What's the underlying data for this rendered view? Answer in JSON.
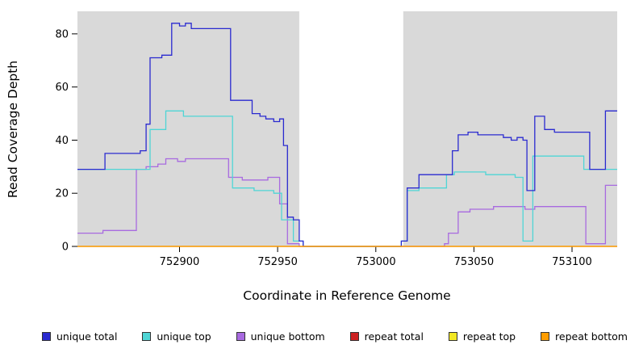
{
  "chart_data": {
    "type": "line",
    "style": "step",
    "title": "",
    "xlabel": "Coordinate in Reference Genome",
    "ylabel": "Read Coverage Depth",
    "xlim": [
      752848,
      753123
    ],
    "ylim": [
      0,
      88.5
    ],
    "x_ticks": [
      752900,
      752950,
      753000,
      753050,
      753100
    ],
    "y_ticks": [
      0,
      20,
      40,
      60,
      80
    ],
    "grid": false,
    "legend_position": "bottom",
    "plot_background": "#d9d9d9",
    "gap_region": {
      "x_start": 752961,
      "x_end": 753014,
      "color": "#ffffff"
    },
    "series": [
      {
        "name": "unique total",
        "color": "#2a2ad0",
        "points": [
          [
            752848,
            29
          ],
          [
            752862,
            35
          ],
          [
            752880,
            36
          ],
          [
            752883,
            46
          ],
          [
            752885,
            71
          ],
          [
            752891,
            72
          ],
          [
            752896,
            84
          ],
          [
            752900,
            83
          ],
          [
            752903,
            84
          ],
          [
            752906,
            82
          ],
          [
            752926,
            55
          ],
          [
            752937,
            50
          ],
          [
            752941,
            49
          ],
          [
            752944,
            48
          ],
          [
            752948,
            47
          ],
          [
            752951,
            48
          ],
          [
            752953,
            38
          ],
          [
            752955,
            11
          ],
          [
            752958,
            10
          ],
          [
            752961,
            2
          ],
          [
            752963,
            0
          ],
          [
            753013,
            2
          ],
          [
            753016,
            22
          ],
          [
            753022,
            27
          ],
          [
            753039,
            36
          ],
          [
            753042,
            42
          ],
          [
            753047,
            43
          ],
          [
            753052,
            42
          ],
          [
            753065,
            41
          ],
          [
            753069,
            40
          ],
          [
            753072,
            41
          ],
          [
            753075,
            40
          ],
          [
            753077,
            21
          ],
          [
            753081,
            49
          ],
          [
            753086,
            44
          ],
          [
            753091,
            43
          ],
          [
            753109,
            29
          ],
          [
            753117,
            51
          ]
        ]
      },
      {
        "name": "unique top",
        "color": "#4fd5d5",
        "points": [
          [
            752848,
            29
          ],
          [
            752885,
            44
          ],
          [
            752893,
            51
          ],
          [
            752902,
            49
          ],
          [
            752927,
            22
          ],
          [
            752938,
            21
          ],
          [
            752948,
            20
          ],
          [
            752952,
            10
          ],
          [
            752958,
            2
          ],
          [
            752963,
            0
          ],
          [
            753013,
            2
          ],
          [
            753016,
            21
          ],
          [
            753022,
            22
          ],
          [
            753036,
            27
          ],
          [
            753040,
            28
          ],
          [
            753056,
            27
          ],
          [
            753071,
            26
          ],
          [
            753075,
            2
          ],
          [
            753080,
            34
          ],
          [
            753106,
            29
          ]
        ]
      },
      {
        "name": "unique bottom",
        "color": "#a86ae0",
        "points": [
          [
            752848,
            5
          ],
          [
            752861,
            6
          ],
          [
            752878,
            29
          ],
          [
            752883,
            30
          ],
          [
            752889,
            31
          ],
          [
            752893,
            33
          ],
          [
            752899,
            32
          ],
          [
            752903,
            33
          ],
          [
            752925,
            26
          ],
          [
            752932,
            25
          ],
          [
            752945,
            26
          ],
          [
            752951,
            16
          ],
          [
            752955,
            1
          ],
          [
            752961,
            0
          ],
          [
            753035,
            1
          ],
          [
            753037,
            5
          ],
          [
            753042,
            13
          ],
          [
            753048,
            14
          ],
          [
            753060,
            15
          ],
          [
            753076,
            14
          ],
          [
            753081,
            15
          ],
          [
            753107,
            1
          ],
          [
            753117,
            23
          ]
        ]
      },
      {
        "name": "repeat total",
        "color": "#cc2222",
        "points": [
          [
            752848,
            0
          ]
        ]
      },
      {
        "name": "repeat top",
        "color": "#f2e724",
        "points": [
          [
            752848,
            0
          ]
        ]
      },
      {
        "name": "repeat bottom",
        "color": "#ff9d00",
        "points": [
          [
            752848,
            0
          ]
        ]
      }
    ]
  }
}
